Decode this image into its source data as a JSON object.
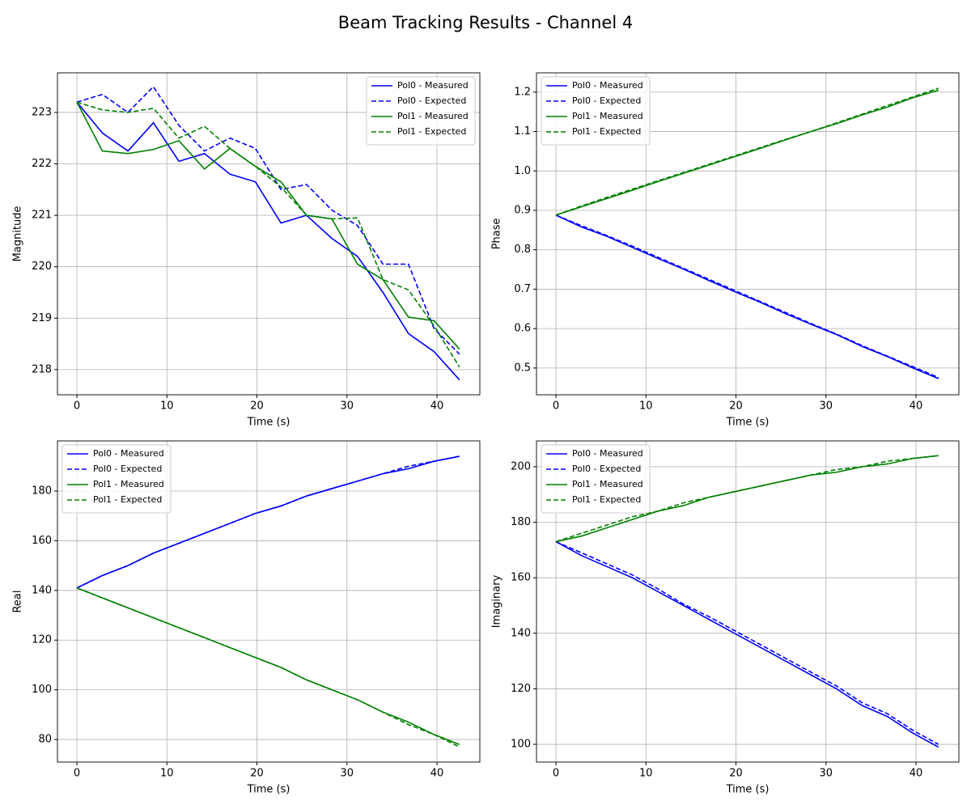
{
  "title": "Beam Tracking Results - Channel 4",
  "chart_data": [
    {
      "type": "line",
      "xlabel": "Time (s)",
      "ylabel": "Magnitude",
      "legend": "upper right",
      "grid": true,
      "x": [
        0,
        2.83,
        5.67,
        8.5,
        11.33,
        14.17,
        17,
        19.83,
        22.67,
        25.5,
        28.33,
        31.17,
        34,
        36.83,
        39.67,
        42.5
      ],
      "xlim": [
        -2.16,
        44.76
      ],
      "xticks": [
        0,
        10,
        20,
        30,
        40
      ],
      "ylim": [
        217.51,
        223.77
      ],
      "yticks": [
        218,
        219,
        220,
        221,
        222,
        223
      ],
      "series": [
        {
          "name": "Pol0 - Measured",
          "color": "#0000ff",
          "dash": false,
          "values": [
            223.2,
            222.6,
            222.25,
            222.8,
            222.05,
            222.2,
            221.8,
            221.65,
            220.85,
            221.0,
            220.55,
            220.2,
            219.5,
            218.7,
            218.35,
            217.8
          ]
        },
        {
          "name": "Pol0 - Expected",
          "color": "#0000ff",
          "dash": true,
          "values": [
            223.2,
            223.35,
            223.0,
            223.5,
            222.75,
            222.25,
            222.5,
            222.3,
            221.5,
            221.6,
            221.1,
            220.8,
            220.05,
            220.05,
            218.8,
            218.3
          ]
        },
        {
          "name": "Pol1 - Measured",
          "color": "#008000",
          "dash": false,
          "values": [
            223.2,
            222.25,
            222.2,
            222.28,
            222.45,
            221.9,
            222.3,
            221.95,
            221.65,
            221.0,
            220.93,
            220.05,
            219.75,
            219.02,
            218.95,
            218.4
          ]
        },
        {
          "name": "Pol1 - Expected",
          "color": "#008000",
          "dash": true,
          "values": [
            223.2,
            223.05,
            223.0,
            223.08,
            222.5,
            222.73,
            222.3,
            221.95,
            221.55,
            221.0,
            220.93,
            220.95,
            219.75,
            219.55,
            218.85,
            218.05
          ]
        }
      ]
    },
    {
      "type": "line",
      "xlabel": "Time (s)",
      "ylabel": "Phase",
      "legend": "upper left",
      "grid": true,
      "x": [
        0,
        2.83,
        5.67,
        8.5,
        11.33,
        14.17,
        17,
        19.83,
        22.67,
        25.5,
        28.33,
        31.17,
        34,
        36.83,
        39.67,
        42.5
      ],
      "xlim": [
        -2.16,
        44.76
      ],
      "xticks": [
        0,
        10,
        20,
        30,
        40
      ],
      "ylim": [
        0.432,
        1.249
      ],
      "yticks": [
        0.5,
        0.6,
        0.7,
        0.8,
        0.9,
        {
          "value": 1,
          "label": "1.0"
        },
        1.1,
        1.2
      ],
      "series": [
        {
          "name": "Pol0 - Measured",
          "color": "#0000ff",
          "dash": false,
          "values": [
            0.888,
            0.858,
            0.834,
            0.806,
            0.778,
            0.751,
            0.722,
            0.694,
            0.667,
            0.638,
            0.611,
            0.585,
            0.555,
            0.529,
            0.5,
            0.473
          ]
        },
        {
          "name": "Pol0 - Expected",
          "color": "#0000ff",
          "dash": true,
          "values": [
            0.888,
            0.861,
            0.836,
            0.809,
            0.781,
            0.753,
            0.725,
            0.697,
            0.669,
            0.641,
            0.613,
            0.586,
            0.557,
            0.53,
            0.503,
            0.476
          ]
        },
        {
          "name": "Pol1 - Measured",
          "color": "#008000",
          "dash": false,
          "values": [
            0.888,
            0.909,
            0.93,
            0.951,
            0.973,
            0.994,
            1.015,
            1.036,
            1.057,
            1.079,
            1.1,
            1.12,
            1.142,
            1.162,
            1.186,
            1.205
          ]
        },
        {
          "name": "Pol1 - Expected",
          "color": "#008000",
          "dash": true,
          "values": [
            0.888,
            0.911,
            0.933,
            0.954,
            0.975,
            0.996,
            1.017,
            1.038,
            1.059,
            1.08,
            1.1,
            1.122,
            1.144,
            1.166,
            1.188,
            1.21
          ]
        }
      ]
    },
    {
      "type": "line",
      "xlabel": "Time (s)",
      "ylabel": "Real",
      "legend": "upper left",
      "grid": true,
      "x": [
        0,
        2.83,
        5.67,
        8.5,
        11.33,
        14.17,
        17,
        19.83,
        22.67,
        25.5,
        28.33,
        31.17,
        34,
        36.83,
        39.67,
        42.5
      ],
      "xlim": [
        -2.16,
        44.76
      ],
      "xticks": [
        0,
        10,
        20,
        30,
        40
      ],
      "ylim": [
        70.9,
        200.2
      ],
      "yticks": [
        80,
        100,
        120,
        140,
        160,
        180
      ],
      "series": [
        {
          "name": "Pol0 - Measured",
          "color": "#0000ff",
          "dash": false,
          "values": [
            141,
            146,
            150,
            155,
            159,
            163,
            167,
            171,
            174,
            178,
            181,
            184,
            187,
            189,
            192,
            194
          ]
        },
        {
          "name": "Pol0 - Expected",
          "color": "#0000ff",
          "dash": true,
          "values": [
            141,
            146,
            150,
            155,
            159,
            163,
            167,
            171,
            174,
            178,
            181,
            184,
            187,
            190,
            192,
            194
          ]
        },
        {
          "name": "Pol1 - Measured",
          "color": "#008000",
          "dash": false,
          "values": [
            141,
            137,
            133,
            129,
            125,
            121,
            117,
            113,
            109,
            104,
            100,
            96,
            91,
            87,
            82,
            78
          ]
        },
        {
          "name": "Pol1 - Expected",
          "color": "#008000",
          "dash": true,
          "values": [
            141,
            137,
            133,
            129,
            125,
            121,
            117,
            113,
            109,
            104,
            100,
            96,
            91,
            86,
            82,
            77
          ]
        }
      ]
    },
    {
      "type": "line",
      "xlabel": "Time (s)",
      "ylabel": "Imaginary",
      "legend": "upper left",
      "grid": true,
      "x": [
        0,
        2.83,
        5.67,
        8.5,
        11.33,
        14.17,
        17,
        19.83,
        22.67,
        25.5,
        28.33,
        31.17,
        34,
        36.83,
        39.67,
        42.5
      ],
      "xlim": [
        -2.16,
        44.76
      ],
      "xticks": [
        0,
        10,
        20,
        30,
        40
      ],
      "ylim": [
        93.6,
        209.3
      ],
      "yticks": [
        100,
        120,
        140,
        160,
        180,
        200
      ],
      "series": [
        {
          "name": "Pol0 - Measured",
          "color": "#0000ff",
          "dash": false,
          "values": [
            173,
            168,
            164,
            160,
            155,
            150,
            145,
            140,
            135,
            130,
            125,
            120,
            114,
            110,
            104,
            99
          ]
        },
        {
          "name": "Pol0 - Expected",
          "color": "#0000ff",
          "dash": true,
          "values": [
            173,
            169,
            165,
            161,
            156,
            150.5,
            146,
            141,
            136,
            131,
            126,
            121,
            115,
            111,
            105,
            100
          ]
        },
        {
          "name": "Pol1 - Measured",
          "color": "#008000",
          "dash": false,
          "values": [
            173,
            175,
            178,
            181,
            184,
            186,
            189,
            191,
            193,
            195,
            197,
            198,
            200,
            201,
            203,
            204
          ]
        },
        {
          "name": "Pol1 - Expected",
          "color": "#008000",
          "dash": true,
          "values": [
            173,
            176,
            179,
            182,
            184,
            187,
            189,
            191,
            193,
            195,
            197,
            199,
            200,
            202,
            203,
            204
          ]
        }
      ]
    }
  ]
}
